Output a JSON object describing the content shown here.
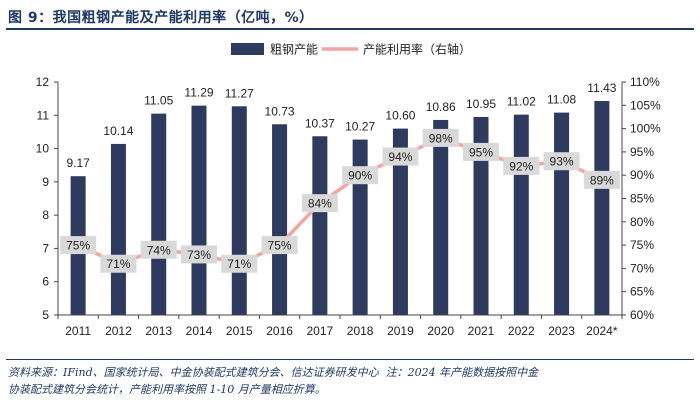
{
  "header": {
    "title": "图 9：我国粗钢产能及产能利用率（亿吨，%）"
  },
  "chart_data": {
    "type": "bar+line",
    "categories": [
      "2011",
      "2012",
      "2013",
      "2014",
      "2015",
      "2016",
      "2017",
      "2018",
      "2019",
      "2020",
      "2021",
      "2022",
      "2023",
      "2024*"
    ],
    "series": [
      {
        "name": "粗钢产能",
        "type": "bar",
        "axis": "left",
        "color": "#2e3a5e",
        "values": [
          9.17,
          10.14,
          11.05,
          11.29,
          11.27,
          10.73,
          10.37,
          10.27,
          10.6,
          10.86,
          10.95,
          11.02,
          11.08,
          11.43
        ],
        "labels": [
          "9.17",
          "10.14",
          "11.05",
          "11.29",
          "11.27",
          "10.73",
          "10.37",
          "10.27",
          "10.60",
          "10.86",
          "10.95",
          "11.02",
          "11.08",
          "11.43"
        ]
      },
      {
        "name": "产能利用率（右轴）",
        "type": "line",
        "axis": "right",
        "color": "#f4a3a3",
        "values": [
          75,
          71,
          74,
          73,
          71,
          75,
          84,
          90,
          94,
          98,
          95,
          92,
          93,
          89
        ],
        "labels": [
          "75%",
          "71%",
          "74%",
          "73%",
          "71%",
          "75%",
          "84%",
          "90%",
          "94%",
          "98%",
          "95%",
          "92%",
          "93%",
          "89%"
        ]
      }
    ],
    "y_left": {
      "min": 5,
      "max": 12,
      "ticks": [
        "5",
        "6",
        "7",
        "8",
        "9",
        "10",
        "11",
        "12"
      ]
    },
    "y_right": {
      "min": 60,
      "max": 110,
      "ticks": [
        "60%",
        "65%",
        "70%",
        "75%",
        "80%",
        "85%",
        "90%",
        "95%",
        "100%",
        "105%",
        "110%"
      ]
    },
    "legend": {
      "position": "top-center",
      "items": [
        "粗钢产能",
        "产能利用率（右轴）"
      ]
    }
  },
  "footer": {
    "line1a": "资料来源：IFind、国家统计局、中金协装配式建筑分会、信达证券研发中心",
    "line1b": "注：2024 年产能数据按照中金",
    "line2": "协装配式建筑分会统计，产能利用率按照 1-10 月产量相应折算。"
  }
}
